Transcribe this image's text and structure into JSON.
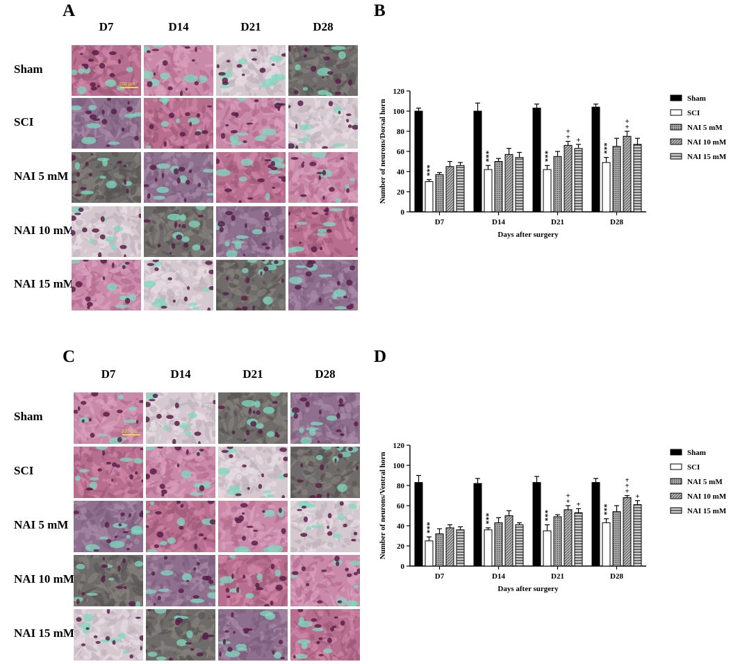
{
  "panels": {
    "A": {
      "letter": "A",
      "columns": [
        "D7",
        "D14",
        "D21",
        "D28"
      ],
      "rows": [
        "Sham",
        "SCI",
        "NAI 5 mM",
        "NAI 10 mM",
        "NAI 15 mM"
      ],
      "scale_bar_label": "100 µm"
    },
    "B": {
      "letter": "B"
    },
    "C": {
      "letter": "C",
      "columns": [
        "D7",
        "D14",
        "D21",
        "D28"
      ],
      "rows": [
        "Sham",
        "SCI",
        "NAI 5 mM",
        "NAI 10 mM",
        "NAI 15 mM"
      ],
      "scale_bar_label": "100 µm"
    },
    "D": {
      "letter": "D"
    }
  },
  "chart_data": [
    {
      "panel": "B",
      "type": "bar",
      "categories": [
        "D7",
        "D14",
        "D21",
        "D28"
      ],
      "xlabel": "Days after surgery",
      "ylabel": "Number of neurons/Dorsal horn",
      "ylim": [
        0,
        120
      ],
      "yticks": [
        0,
        20,
        40,
        60,
        80,
        100,
        120
      ],
      "legend_position": "right",
      "series": [
        {
          "name": "Sham",
          "values": [
            100,
            100,
            103,
            104
          ],
          "errors": [
            3,
            8,
            4,
            3
          ]
        },
        {
          "name": "SCI",
          "values": [
            30,
            42,
            42,
            49
          ],
          "errors": [
            2,
            4,
            4,
            5
          ]
        },
        {
          "name": "NAI 5 mM",
          "values": [
            37,
            50,
            55,
            65
          ],
          "errors": [
            2,
            3,
            5,
            8
          ]
        },
        {
          "name": "NAI 10 mM",
          "values": [
            45,
            57,
            66,
            75
          ],
          "errors": [
            5,
            6,
            4,
            5
          ]
        },
        {
          "name": "NAI 15 mM",
          "values": [
            46,
            54,
            63,
            67
          ],
          "errors": [
            3,
            5,
            4,
            6
          ]
        }
      ],
      "annotations": [
        {
          "category": "D7",
          "series": "SCI",
          "text": "***"
        },
        {
          "category": "D14",
          "series": "SCI",
          "text": "***"
        },
        {
          "category": "D21",
          "series": "SCI",
          "text": "***"
        },
        {
          "category": "D21",
          "series": "NAI 10 mM",
          "text": "++"
        },
        {
          "category": "D21",
          "series": "NAI 15 mM",
          "text": "+"
        },
        {
          "category": "D28",
          "series": "SCI",
          "text": "***"
        },
        {
          "category": "D28",
          "series": "NAI 10 mM",
          "text": "++"
        }
      ]
    },
    {
      "panel": "D",
      "type": "bar",
      "categories": [
        "D7",
        "D14",
        "D21",
        "D28"
      ],
      "xlabel": "Days after surgery",
      "ylabel": "Number of neurons/Ventral horn",
      "ylim": [
        0,
        120
      ],
      "yticks": [
        0,
        20,
        40,
        60,
        80,
        100,
        120
      ],
      "legend_position": "right",
      "series": [
        {
          "name": "Sham",
          "values": [
            83,
            82,
            83,
            83
          ],
          "errors": [
            7,
            5,
            6,
            4
          ]
        },
        {
          "name": "SCI",
          "values": [
            25,
            36,
            35,
            43
          ],
          "errors": [
            4,
            2,
            6,
            4
          ]
        },
        {
          "name": "NAI 5 mM",
          "values": [
            32,
            43,
            49,
            54
          ],
          "errors": [
            5,
            5,
            2,
            6
          ]
        },
        {
          "name": "NAI 10 mM",
          "values": [
            38,
            50,
            56,
            68
          ],
          "errors": [
            3,
            5,
            4,
            2
          ]
        },
        {
          "name": "NAI 15 mM",
          "values": [
            36,
            41,
            53,
            61
          ],
          "errors": [
            3,
            2,
            4,
            4
          ]
        }
      ],
      "annotations": [
        {
          "category": "D7",
          "series": "SCI",
          "text": "***"
        },
        {
          "category": "D14",
          "series": "SCI",
          "text": "***"
        },
        {
          "category": "D21",
          "series": "SCI",
          "text": "***"
        },
        {
          "category": "D21",
          "series": "NAI 10 mM",
          "text": "++"
        },
        {
          "category": "D21",
          "series": "NAI 15 mM",
          "text": "+"
        },
        {
          "category": "D28",
          "series": "SCI",
          "text": "***"
        },
        {
          "category": "D28",
          "series": "NAI 10 mM",
          "text": "+++"
        },
        {
          "category": "D28",
          "series": "NAI 15 mM",
          "text": "+"
        }
      ]
    }
  ]
}
